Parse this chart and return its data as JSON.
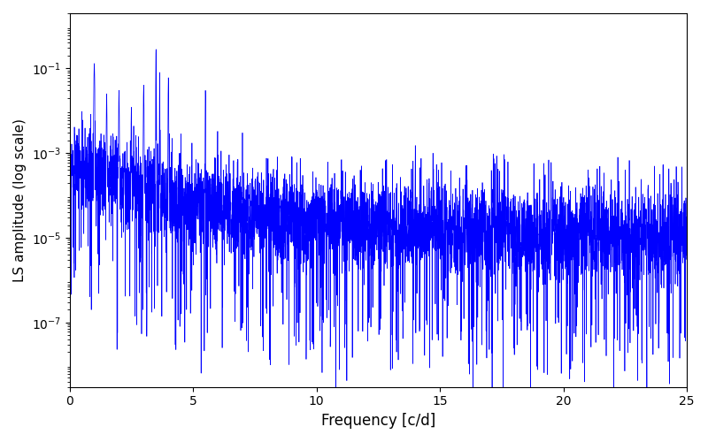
{
  "title": "",
  "xlabel": "Frequency [c/d]",
  "ylabel": "LS amplitude (log scale)",
  "xlim": [
    0,
    25
  ],
  "ylim": [
    3e-09,
    2.0
  ],
  "line_color": "#0000ff",
  "line_width": 0.5,
  "background_color": "#ffffff",
  "figsize": [
    8.0,
    5.0
  ],
  "dpi": 100,
  "yscale": "log",
  "seed": 1234,
  "n_points": 5000,
  "freq_max": 25.0
}
